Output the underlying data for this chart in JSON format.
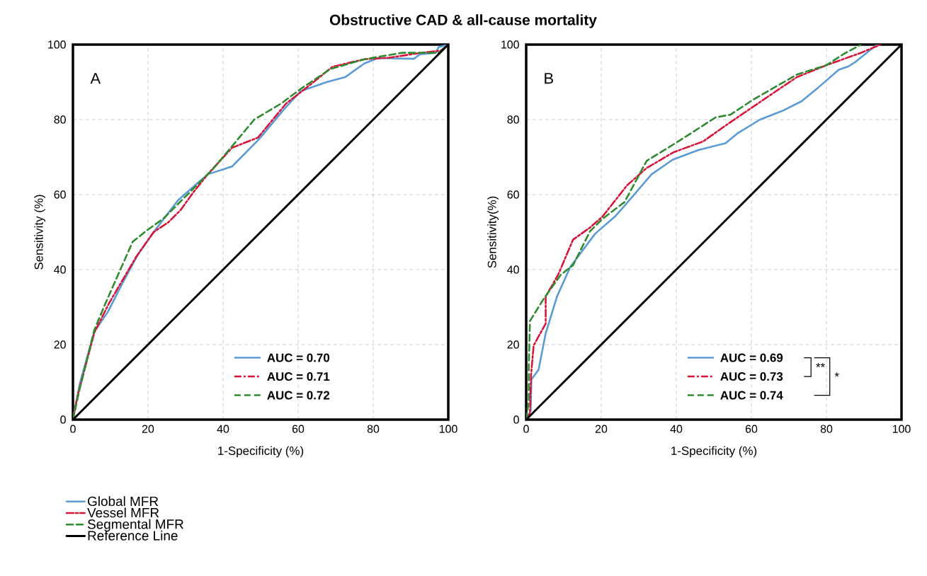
{
  "chart_data": [
    {
      "type": "line",
      "title": "Obstructive CAD & all-cause mortality",
      "xlabel": "1-Specificity (%)",
      "ylabel": "Sensitivity (%)",
      "xlim": [
        0,
        100
      ],
      "ylim": [
        0,
        100
      ],
      "xticks": [
        0,
        20,
        40,
        60,
        80,
        100
      ],
      "yticks": [
        0,
        20,
        40,
        60,
        80,
        100
      ],
      "grid": true,
      "legend": "bottom left",
      "annotations": [
        "A",
        "AUC = 0.70",
        "AUC = 0.71",
        "AUC = 0.72"
      ],
      "series": [
        {
          "name": "Global MFR",
          "color": "#5b9bd5",
          "line_style": "solid",
          "x": [
            0,
            1.8,
            5.7,
            9.3,
            13.3,
            17.2,
            21.5,
            28,
            31.3,
            35.9,
            42.4,
            49.6,
            56.2,
            60.7,
            67.6,
            72.5,
            77.7,
            81.3,
            90.8,
            92.5,
            96.7,
            97.4,
            100
          ],
          "values": [
            0,
            9.5,
            23.5,
            28.7,
            36.6,
            43.8,
            50,
            58.5,
            61.4,
            65.4,
            67.5,
            74.8,
            82.7,
            87.6,
            90,
            91.3,
            95,
            96.4,
            96.2,
            97.4,
            97.8,
            99.3,
            100
          ]
        },
        {
          "name": "Vessel MFR",
          "color": "#d7153a",
          "line_style": "dashdot",
          "x": [
            0,
            1.2,
            3.1,
            5.7,
            9.6,
            16.9,
            21.5,
            25.4,
            28.7,
            32,
            35.9,
            42.4,
            49.3,
            56.8,
            60.7,
            69.2,
            77.7,
            84.2,
            92.8,
            98,
            100
          ],
          "values": [
            0,
            6.2,
            13.4,
            23.2,
            31,
            43.5,
            50,
            52.6,
            55.9,
            60.5,
            65.4,
            72.5,
            75.2,
            84.3,
            87.3,
            94.1,
            96.1,
            96.5,
            97.8,
            98.4,
            100
          ]
        },
        {
          "name": "Segmental MFR",
          "color": "#2e8b2e",
          "line_style": "dashed",
          "x": [
            0,
            1.8,
            5.7,
            8.4,
            15.9,
            19.5,
            24.1,
            28,
            32.6,
            37.2,
            42.4,
            48.3,
            55.5,
            60.7,
            68.6,
            77.7,
            87.6,
            97.4,
            100
          ],
          "values": [
            0,
            8.2,
            23.9,
            30.4,
            47.4,
            50.3,
            53.6,
            57.5,
            62.1,
            66.7,
            72.9,
            80,
            84.3,
            88.2,
            93.5,
            96.1,
            97.8,
            97.8,
            100
          ]
        },
        {
          "name": "Reference Line",
          "color": "#000000",
          "line_style": "solid",
          "x": [
            0,
            100
          ],
          "values": [
            0,
            100
          ]
        }
      ]
    },
    {
      "type": "line",
      "xlabel": "1-Specificity (%)",
      "ylabel": "Sensitivity(%)",
      "xlim": [
        0,
        100
      ],
      "ylim": [
        0,
        100
      ],
      "xticks": [
        0,
        20,
        40,
        60,
        80,
        100
      ],
      "yticks": [
        0,
        20,
        40,
        60,
        80,
        100
      ],
      "grid": true,
      "annotations": [
        "B",
        "AUC = 0.69",
        "AUC = 0.73",
        "AUC = 0.74",
        "**",
        "*"
      ],
      "series": [
        {
          "color": "#5b9bd5",
          "line_style": "solid",
          "x": [
            0,
            1.2,
            1.4,
            3.3,
            5.2,
            8.2,
            11.8,
            18.4,
            23.6,
            26.2,
            33.4,
            39,
            45.9,
            53.1,
            56.4,
            62.3,
            68.2,
            73.4,
            78,
            83.3,
            85.9,
            87.9,
            93.1,
            94
          ],
          "values": [
            0,
            2.3,
            10.7,
            13.3,
            23,
            32.8,
            40.8,
            49.6,
            54.1,
            57,
            65.4,
            69.3,
            71.9,
            73.7,
            76.4,
            80,
            82.3,
            84.9,
            88.7,
            93.3,
            94.2,
            95.5,
            99.7,
            100
          ]
        },
        {
          "color": "#d7153a",
          "line_style": "dashdot",
          "x": [
            0,
            1,
            1.3,
            2,
            5.2,
            5.2,
            8.5,
            12.5,
            17,
            20.3,
            26.9,
            32.1,
            39.3,
            47.2,
            53.1,
            59.7,
            66.9,
            72.1,
            80,
            89.2,
            94.4
          ],
          "values": [
            0,
            1.7,
            12,
            19.8,
            25.6,
            32.8,
            38.6,
            48,
            51.2,
            54.1,
            62.5,
            67.1,
            71.3,
            74.2,
            78.4,
            82.9,
            87.8,
            91.3,
            94.5,
            97.8,
            100
          ]
        },
        {
          "color": "#2e8b2e",
          "line_style": "dashed",
          "x": [
            0,
            0.7,
            0.7,
            1,
            4.6,
            9.2,
            12.5,
            17,
            20.3,
            26.2,
            32.1,
            38,
            44.6,
            50.5,
            54.4,
            60.3,
            72.1,
            80,
            84.6,
            89.2
          ],
          "values": [
            0,
            4.9,
            14.6,
            26.3,
            32.1,
            38.6,
            41.2,
            50.2,
            53.5,
            58,
            69,
            72.6,
            76.8,
            80.6,
            81.3,
            85.2,
            92,
            94.5,
            97.5,
            100
          ]
        },
        {
          "color": "#000000",
          "line_style": "solid",
          "x": [
            0,
            100
          ],
          "values": [
            0,
            100
          ]
        }
      ]
    }
  ]
}
